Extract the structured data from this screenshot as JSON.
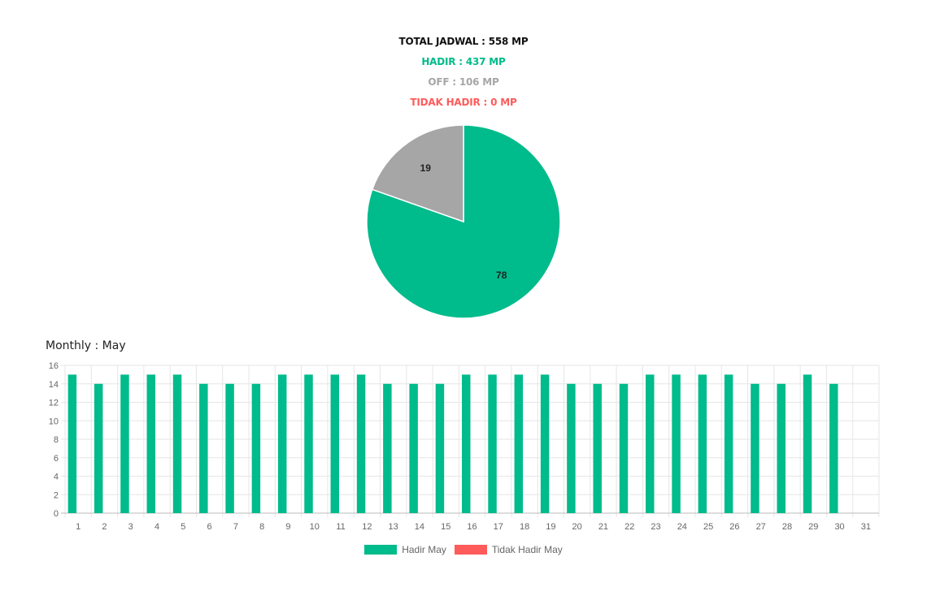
{
  "summary": {
    "total": "TOTAL JADWAL : 558 MP",
    "hadir": "HADIR : 437 MP",
    "off": "OFF : 106 MP",
    "tidak_hadir": "TIDAK HADIR : 0 MP"
  },
  "colors": {
    "hadir": "#00bb8b",
    "off": "#a6a6a6",
    "tidak_hadir": "#ff5b5b",
    "grid": "#e6e6e6",
    "axis_text": "#666666"
  },
  "monthly": {
    "title": "Monthly : May"
  },
  "chart_data": [
    {
      "type": "pie",
      "labels": [
        "Hadir",
        "Off",
        "Tidak Hadir"
      ],
      "values": [
        78,
        19,
        0
      ],
      "value_labels": [
        "78",
        "19",
        ""
      ],
      "colors": [
        "#00bb8b",
        "#a6a6a6",
        "#ff5b5b"
      ]
    },
    {
      "type": "bar",
      "categories": [
        "1",
        "2",
        "3",
        "4",
        "5",
        "6",
        "7",
        "8",
        "9",
        "10",
        "11",
        "12",
        "13",
        "14",
        "15",
        "16",
        "17",
        "18",
        "19",
        "20",
        "21",
        "22",
        "23",
        "24",
        "25",
        "26",
        "27",
        "28",
        "29",
        "30",
        "31"
      ],
      "series": [
        {
          "name": "Hadir May",
          "color": "#00bb8b",
          "values": [
            15,
            14,
            15,
            15,
            15,
            14,
            14,
            14,
            15,
            15,
            15,
            15,
            14,
            14,
            14,
            15,
            15,
            15,
            15,
            14,
            14,
            14,
            15,
            15,
            15,
            15,
            14,
            14,
            15,
            14,
            0
          ]
        },
        {
          "name": "Tidak Hadir May",
          "color": "#ff5b5b",
          "values": [
            0,
            0,
            0,
            0,
            0,
            0,
            0,
            0,
            0,
            0,
            0,
            0,
            0,
            0,
            0,
            0,
            0,
            0,
            0,
            0,
            0,
            0,
            0,
            0,
            0,
            0,
            0,
            0,
            0,
            0,
            0
          ]
        }
      ],
      "ylim": [
        0,
        16
      ],
      "yticks": [
        "0",
        "2",
        "4",
        "6",
        "8",
        "10",
        "12",
        "14",
        "16"
      ],
      "grid": true,
      "legend": "bottom"
    }
  ]
}
